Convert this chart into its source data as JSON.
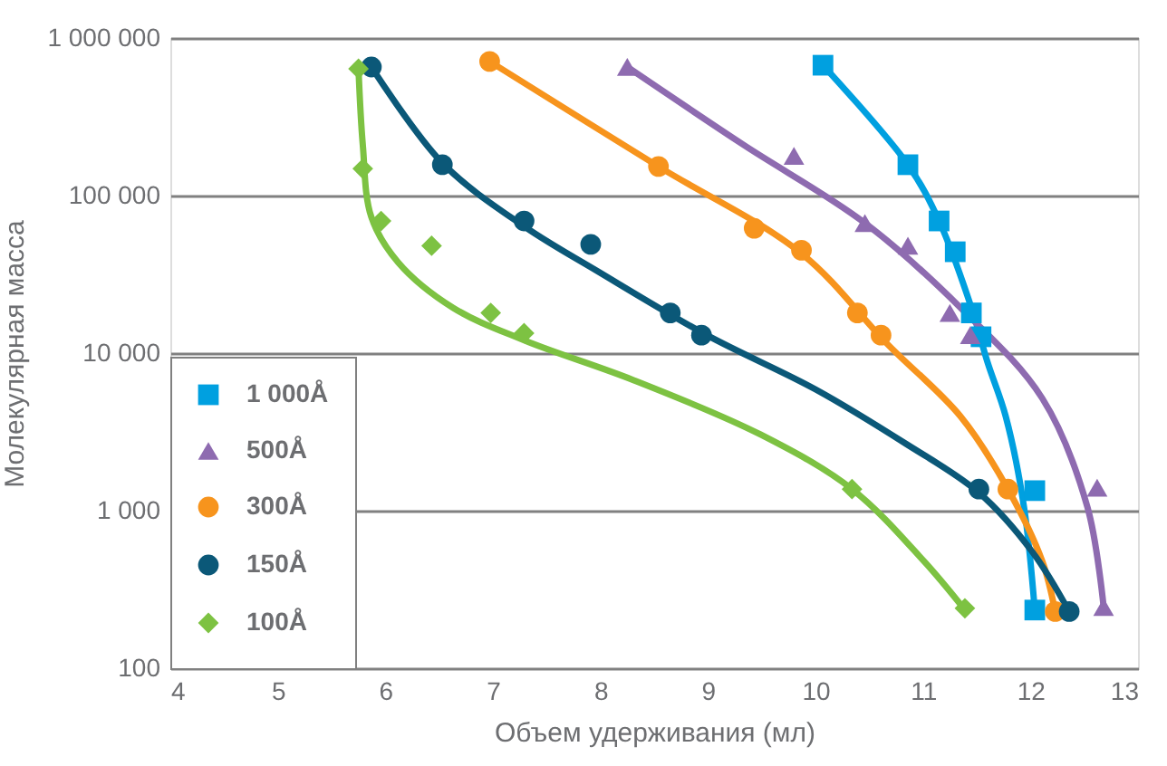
{
  "chart_data": {
    "type": "scatter",
    "xlabel": "Объем удерживания (мл)",
    "ylabel": "Молекулярная масса",
    "log": "y",
    "grid": "y",
    "legend": "bottom left",
    "xlim": [
      4,
      13
    ],
    "xticks": [
      4,
      5,
      6,
      7,
      8,
      9,
      10,
      11,
      12,
      13
    ],
    "ylim": [
      100,
      1000000
    ],
    "yticks": [
      {
        "value": 100,
        "label": "100"
      },
      {
        "value": 1000,
        "label": "1 000"
      },
      {
        "value": 10000,
        "label": "10 000"
      },
      {
        "value": 100000,
        "label": "100 000"
      },
      {
        "value": 1000000,
        "label": "1 000 000"
      }
    ],
    "series": [
      {
        "name": "1 000Å",
        "type": "scatter",
        "marker": "square",
        "color": "#00a0e0",
        "x": [
          10.07,
          10.86,
          11.15,
          11.3,
          11.45,
          11.54,
          12.04,
          12.04
        ],
        "values": [
          672000,
          157000,
          69000,
          44000,
          18000,
          12700,
          1340,
          234
        ]
      },
      {
        "name": "500Å",
        "type": "scatter",
        "marker": "triangle",
        "color": "#8e6bb0",
        "x": [
          8.25,
          9.8,
          10.46,
          10.86,
          11.25,
          11.44,
          12.62,
          12.68
        ],
        "values": [
          655000,
          179000,
          67000,
          48000,
          18000,
          13000,
          1400,
          245
        ]
      },
      {
        "name": "300Å",
        "type": "scatter",
        "marker": "circle",
        "color": "#f7941d",
        "x": [
          6.97,
          8.54,
          9.43,
          9.87,
          10.39,
          10.61,
          11.79,
          12.23
        ],
        "values": [
          710000,
          153000,
          62000,
          45000,
          18000,
          13000,
          1370,
          229
        ]
      },
      {
        "name": "150Å",
        "type": "scatter",
        "marker": "circle",
        "color": "#0b5878",
        "x": [
          5.87,
          6.53,
          7.29,
          7.91,
          8.65,
          8.94,
          11.52,
          12.36
        ],
        "values": [
          655000,
          157000,
          69000,
          49000,
          18000,
          13000,
          1370,
          229
        ]
      },
      {
        "name": "100Å",
        "type": "scatter",
        "marker": "diamond",
        "color": "#7dc242",
        "x": [
          5.75,
          5.79,
          5.96,
          6.43,
          6.98,
          7.29,
          10.34,
          11.39
        ],
        "values": [
          638000,
          148000,
          69000,
          48000,
          18000,
          13400,
          1370,
          240
        ]
      },
      {
        "type": "line",
        "color": "#00a0e0",
        "x": [
          10.07,
          10.86,
          11.15,
          11.45,
          11.6,
          11.77,
          11.94,
          12.04
        ],
        "values": [
          672000,
          157000,
          69000,
          19500,
          8770,
          3960,
          1050,
          233
        ]
      },
      {
        "type": "line",
        "color": "#8e6bb0",
        "x": [
          8.25,
          9.33,
          10.46,
          11.35,
          12.11,
          12.53,
          12.68
        ],
        "values": [
          655000,
          210000,
          67000,
          19400,
          5160,
          1050,
          246
        ]
      },
      {
        "type": "line",
        "color": "#f7941d",
        "x": [
          6.97,
          8.54,
          9.87,
          10.67,
          11.35,
          11.79,
          12.11,
          12.23
        ],
        "values": [
          710000,
          153000,
          42900,
          11400,
          3960,
          1370,
          477,
          229
        ]
      },
      {
        "type": "line",
        "color": "#0b5878",
        "x": [
          5.87,
          6.53,
          7.29,
          7.98,
          8.99,
          10.0,
          10.84,
          11.52,
          12.02,
          12.36
        ],
        "values": [
          655000,
          161000,
          63800,
          32900,
          13000,
          5890,
          2660,
          1300,
          544,
          229
        ]
      },
      {
        "type": "line",
        "color": "#7dc242",
        "x": [
          5.75,
          5.79,
          5.87,
          6.12,
          6.63,
          7.3,
          8.31,
          9.49,
          10.34,
          11.01,
          11.38
        ],
        "values": [
          638000,
          210000,
          72800,
          37600,
          19400,
          12000,
          6730,
          3040,
          1370,
          477,
          239
        ]
      }
    ]
  }
}
